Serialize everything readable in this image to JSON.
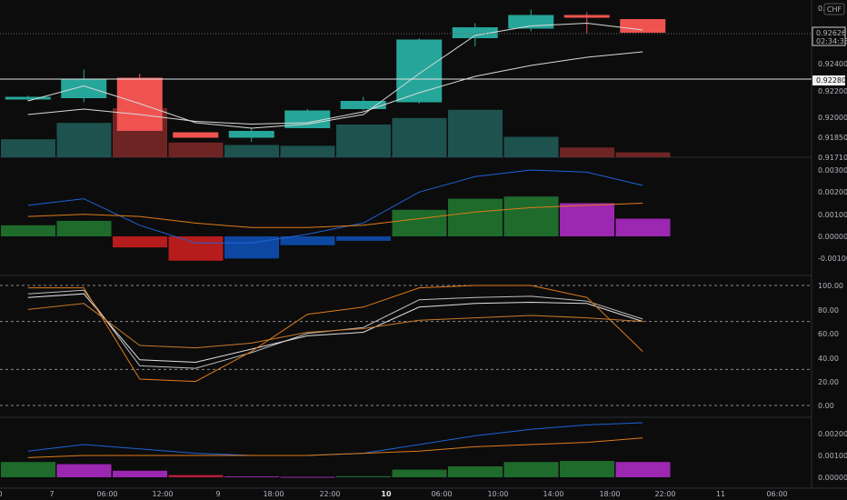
{
  "header": {
    "currency": "CHF"
  },
  "price_labels": {
    "last_price": "0.92626",
    "countdown": "02:34:38",
    "hline_price": "0.92280"
  },
  "chart_data": [
    {
      "type": "candlestick",
      "pane": "price",
      "y_ticks": [
        "0.92400",
        "0.92200",
        "0.92000",
        "0.91850",
        "0.91710"
      ],
      "candles": [
        {
          "o": 0.9213,
          "h": 0.9216,
          "l": 0.9212,
          "c": 0.9215
        },
        {
          "o": 0.9214,
          "h": 0.9235,
          "l": 0.9211,
          "c": 0.9228
        },
        {
          "o": 0.9229,
          "h": 0.9232,
          "l": 0.919,
          "c": 0.919
        },
        {
          "o": 0.9189,
          "h": 0.9189,
          "l": 0.9185,
          "c": 0.9185
        },
        {
          "o": 0.9185,
          "h": 0.9192,
          "l": 0.9182,
          "c": 0.919
        },
        {
          "o": 0.9192,
          "h": 0.9206,
          "l": 0.9192,
          "c": 0.9205
        },
        {
          "o": 0.9206,
          "h": 0.9215,
          "l": 0.9205,
          "c": 0.9212
        },
        {
          "o": 0.9211,
          "h": 0.9258,
          "l": 0.921,
          "c": 0.9257
        },
        {
          "o": 0.9258,
          "h": 0.9269,
          "l": 0.9252,
          "c": 0.9266
        },
        {
          "o": 0.9265,
          "h": 0.9279,
          "l": 0.9263,
          "c": 0.9275
        },
        {
          "o": 0.9275,
          "h": 0.9277,
          "l": 0.9261,
          "c": 0.9273
        },
        {
          "o": 0.9272,
          "h": 0.9272,
          "l": 0.9262,
          "c": 0.9262
        }
      ],
      "ma_fast": [
        0.9212,
        0.9223,
        0.921,
        0.9196,
        0.9192,
        0.9195,
        0.9202,
        0.9232,
        0.926,
        0.9267,
        0.9269,
        0.9264
      ],
      "ma_slow": [
        0.9202,
        0.9206,
        0.9202,
        0.9197,
        0.9195,
        0.9196,
        0.9204,
        0.9218,
        0.923,
        0.9238,
        0.9244,
        0.9248
      ],
      "volume": [
        0.22,
        0.42,
        0.6,
        0.18,
        0.15,
        0.14,
        0.4,
        0.48,
        0.58,
        0.25,
        0.12,
        0.06
      ],
      "hline": 0.9228
    },
    {
      "type": "histogram",
      "pane": "macd",
      "y_ticks": [
        "0.00300",
        "0.00200",
        "0.00100",
        "0.00000",
        "-0.00100"
      ],
      "hist": [
        0.0005,
        0.0007,
        -0.0005,
        -0.0011,
        -0.001,
        -0.0004,
        -0.0002,
        0.0012,
        0.0017,
        0.0018,
        0.0015,
        0.0008
      ],
      "macd": [
        0.0014,
        0.0017,
        0.0005,
        -0.0003,
        -0.0003,
        0.0001,
        0.0006,
        0.002,
        0.0027,
        0.003,
        0.0029,
        0.0023
      ],
      "signal": [
        0.0009,
        0.001,
        0.0009,
        0.0006,
        0.0004,
        0.0004,
        0.0005,
        0.0008,
        0.0011,
        0.0013,
        0.0014,
        0.0015
      ]
    },
    {
      "type": "line",
      "pane": "stochastic",
      "y_ticks": [
        "100.00",
        "80.00",
        "60.00",
        "40.00",
        "20.00",
        "0.00"
      ],
      "hlines": [
        100,
        70,
        30,
        0
      ],
      "lines": [
        [
          93,
          96,
          33,
          31,
          44,
          60,
          65,
          88,
          90,
          91,
          87,
          72
        ],
        [
          90,
          93,
          38,
          36,
          47,
          58,
          61,
          82,
          85,
          86,
          85,
          70
        ],
        [
          80,
          85,
          50,
          48,
          52,
          61,
          64,
          71,
          73,
          75,
          73,
          70
        ],
        [
          98,
          98,
          22,
          20,
          45,
          76,
          82,
          98,
          100,
          100,
          90,
          45
        ]
      ]
    },
    {
      "type": "histogram",
      "pane": "oscillator",
      "y_ticks": [
        "0.00200",
        "0.00100",
        "0.00000"
      ],
      "hist": [
        0.0007,
        0.0006,
        0.0003,
        0.0001,
        4e-05,
        2e-05,
        5e-05,
        0.00035,
        0.0005,
        0.0007,
        0.00075,
        0.0007
      ],
      "line_fast": [
        0.0012,
        0.0015,
        0.0013,
        0.0011,
        0.001,
        0.001,
        0.0011,
        0.0015,
        0.0019,
        0.0022,
        0.0024,
        0.0025
      ],
      "line_slow": [
        0.0009,
        0.001,
        0.001,
        0.001,
        0.001,
        0.001,
        0.0011,
        0.0012,
        0.0014,
        0.0015,
        0.0016,
        0.0018
      ]
    }
  ],
  "x_axis_labels": [
    "0",
    "7",
    "06:00",
    "12:00",
    "9",
    "18:00",
    "22:00",
    "10",
    "06:00",
    "10:00",
    "14:00",
    "18:00",
    "22:00",
    "11",
    "06:00"
  ],
  "colors": {
    "up": "#26a69a",
    "down": "#ef5350",
    "vol_up": "#1f5a55",
    "vol_down": "#7a2727",
    "hist_green": "#1e6b2c",
    "hist_red": "#b71c1c",
    "hist_blue": "#0d47a1",
    "hist_purple": "#9c27b0",
    "blue_line": "#1e63d6",
    "orange_line": "#e07b1a",
    "white_line": "#d9d9d9"
  }
}
